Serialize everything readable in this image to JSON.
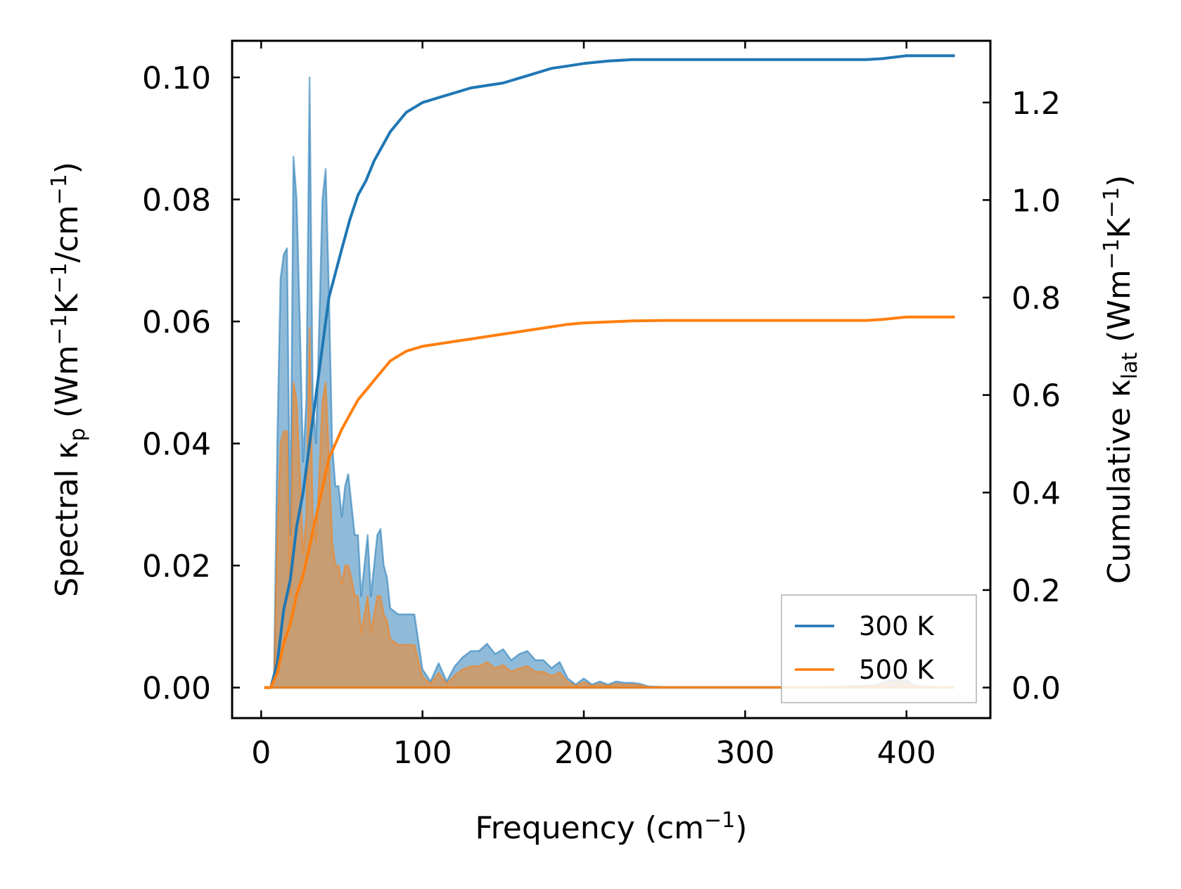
{
  "chart_data": {
    "type": "area",
    "xlabel": "Frequency (cm",
    "xlabel_sup": "−1",
    "xlabel_end": ")",
    "ylabel_left_parts": {
      "pre": "Spectral κ",
      "sub": "p",
      "mid1": " (Wm",
      "sup1": "−1",
      "mid2": "K",
      "sup2": "−1",
      "mid3": "/cm",
      "sup3": "−1",
      "end": ")"
    },
    "ylabel_right_parts": {
      "pre": "Cumulative κ",
      "sub": "lat",
      "mid1": " (Wm",
      "sup1": "−1",
      "mid2": "K",
      "sup2": "−1",
      "end": ")"
    },
    "xlim": [
      -18,
      452
    ],
    "ylim_left": [
      -0.005,
      0.106
    ],
    "ylim_right": [
      -0.0626,
      1.3266
    ],
    "x_ticks": [
      0,
      100,
      200,
      300,
      400
    ],
    "x_tick_labels": [
      "0",
      "100",
      "200",
      "300",
      "400"
    ],
    "y_left_ticks": [
      0.0,
      0.02,
      0.04,
      0.06,
      0.08,
      0.1
    ],
    "y_left_tick_labels": [
      "0.00",
      "0.02",
      "0.04",
      "0.06",
      "0.08",
      "0.10"
    ],
    "y_right_ticks": [
      0.0,
      0.2,
      0.4,
      0.6,
      0.8,
      1.0,
      1.2
    ],
    "y_right_tick_labels": [
      "0.0",
      "0.2",
      "0.4",
      "0.6",
      "0.8",
      "1.0",
      "1.2"
    ],
    "legend": {
      "position": "lower-right",
      "entries": [
        "300 K",
        "500 K"
      ]
    },
    "spectral": [
      {
        "name": "300 K",
        "color": "#1f77b4",
        "x": [
          2,
          6,
          8,
          10,
          12,
          14,
          16,
          18,
          20,
          22,
          24,
          26,
          28,
          30,
          32,
          34,
          36,
          38,
          40,
          42,
          44,
          46,
          48,
          50,
          52,
          54,
          56,
          58,
          60,
          62,
          64,
          66,
          68,
          70,
          72,
          74,
          76,
          78,
          80,
          85,
          90,
          95,
          100,
          105,
          110,
          115,
          120,
          125,
          130,
          135,
          140,
          145,
          150,
          155,
          160,
          165,
          170,
          175,
          180,
          185,
          190,
          195,
          200,
          205,
          210,
          215,
          220,
          225,
          230,
          235,
          240,
          250,
          300,
          350,
          380,
          385,
          390,
          395,
          400,
          405,
          410,
          420,
          430
        ],
        "y": [
          0,
          0,
          0.002,
          0.04,
          0.067,
          0.071,
          0.072,
          0.025,
          0.087,
          0.08,
          0.06,
          0.037,
          0.047,
          0.1,
          0.047,
          0.04,
          0.06,
          0.08,
          0.085,
          0.065,
          0.04,
          0.033,
          0.033,
          0.028,
          0.033,
          0.035,
          0.03,
          0.025,
          0.025,
          0.015,
          0.02,
          0.025,
          0.015,
          0.02,
          0.025,
          0.026,
          0.02,
          0.018,
          0.013,
          0.012,
          0.012,
          0.012,
          0.003,
          0.001,
          0.004,
          0.001,
          0.0035,
          0.005,
          0.006,
          0.006,
          0.0072,
          0.0055,
          0.0063,
          0.0045,
          0.0055,
          0.006,
          0.0045,
          0.0045,
          0.0032,
          0.0042,
          0.0015,
          0.0005,
          0.0015,
          0.0005,
          0.001,
          0.0005,
          0.001,
          0.0008,
          0.0008,
          0.0006,
          0.0002,
          0.0001,
          0.0001,
          0.0001,
          0.0004,
          0.0008,
          0.0012,
          0.0013,
          0.0012,
          0.0004,
          0.0002,
          0.0001,
          0.0001
        ]
      },
      {
        "name": "500 K",
        "color": "#ff7f0e",
        "x": [
          2,
          6,
          8,
          10,
          12,
          14,
          16,
          18,
          20,
          22,
          24,
          26,
          28,
          30,
          32,
          34,
          36,
          38,
          40,
          42,
          44,
          46,
          48,
          50,
          52,
          54,
          56,
          58,
          60,
          62,
          64,
          66,
          68,
          70,
          72,
          74,
          76,
          78,
          80,
          85,
          90,
          95,
          100,
          105,
          110,
          115,
          120,
          125,
          130,
          135,
          140,
          145,
          150,
          155,
          160,
          165,
          170,
          175,
          180,
          185,
          190,
          195,
          200,
          205,
          210,
          215,
          220,
          225,
          230,
          235,
          240,
          250,
          300,
          350,
          380,
          385,
          390,
          395,
          400,
          405,
          410,
          420,
          430
        ],
        "y": [
          0,
          0,
          0.001,
          0.025,
          0.04,
          0.042,
          0.042,
          0.015,
          0.05,
          0.047,
          0.035,
          0.022,
          0.028,
          0.059,
          0.028,
          0.024,
          0.035,
          0.047,
          0.05,
          0.038,
          0.024,
          0.02,
          0.02,
          0.017,
          0.02,
          0.02,
          0.018,
          0.015,
          0.015,
          0.009,
          0.012,
          0.015,
          0.009,
          0.012,
          0.015,
          0.015,
          0.012,
          0.011,
          0.008,
          0.007,
          0.007,
          0.007,
          0.0018,
          0.0006,
          0.0024,
          0.0006,
          0.002,
          0.003,
          0.0035,
          0.0035,
          0.0042,
          0.0032,
          0.0037,
          0.0026,
          0.0032,
          0.0035,
          0.0026,
          0.0026,
          0.0019,
          0.0025,
          0.0009,
          0.0003,
          0.0009,
          0.0003,
          0.0006,
          0.0003,
          0.0006,
          0.0005,
          0.0005,
          0.0004,
          0.0001,
          0.0001,
          0.0001,
          0.0001,
          0.0003,
          0.0006,
          0.0009,
          0.001,
          0.0009,
          0.0003,
          0.0001,
          0.0001,
          0.0001
        ]
      }
    ],
    "cumulative": [
      {
        "name": "300 K",
        "color": "#1f77b4",
        "x": [
          2,
          6,
          10,
          14,
          18,
          22,
          26,
          30,
          34,
          38,
          42,
          46,
          50,
          55,
          60,
          65,
          70,
          75,
          80,
          85,
          90,
          95,
          100,
          110,
          120,
          130,
          140,
          150,
          160,
          170,
          180,
          190,
          200,
          215,
          230,
          250,
          300,
          350,
          375,
          385,
          400,
          410,
          430
        ],
        "y": [
          0,
          0,
          0.05,
          0.16,
          0.22,
          0.33,
          0.4,
          0.5,
          0.6,
          0.7,
          0.8,
          0.85,
          0.9,
          0.96,
          1.01,
          1.04,
          1.08,
          1.11,
          1.14,
          1.16,
          1.18,
          1.19,
          1.2,
          1.21,
          1.22,
          1.23,
          1.235,
          1.24,
          1.25,
          1.26,
          1.27,
          1.275,
          1.28,
          1.285,
          1.288,
          1.288,
          1.288,
          1.288,
          1.288,
          1.29,
          1.296,
          1.296,
          1.296
        ]
      },
      {
        "name": "500 K",
        "color": "#ff7f0e",
        "x": [
          2,
          6,
          10,
          14,
          18,
          22,
          26,
          30,
          34,
          38,
          42,
          46,
          50,
          55,
          60,
          65,
          70,
          75,
          80,
          85,
          90,
          95,
          100,
          110,
          120,
          130,
          140,
          150,
          160,
          170,
          180,
          190,
          200,
          215,
          230,
          250,
          300,
          350,
          375,
          385,
          400,
          410,
          430
        ],
        "y": [
          0,
          0,
          0.03,
          0.09,
          0.13,
          0.19,
          0.23,
          0.29,
          0.35,
          0.41,
          0.47,
          0.5,
          0.53,
          0.56,
          0.59,
          0.61,
          0.63,
          0.65,
          0.67,
          0.68,
          0.69,
          0.695,
          0.7,
          0.705,
          0.71,
          0.715,
          0.72,
          0.725,
          0.73,
          0.735,
          0.74,
          0.745,
          0.748,
          0.75,
          0.752,
          0.753,
          0.753,
          0.753,
          0.753,
          0.755,
          0.76,
          0.76,
          0.76
        ]
      }
    ]
  }
}
